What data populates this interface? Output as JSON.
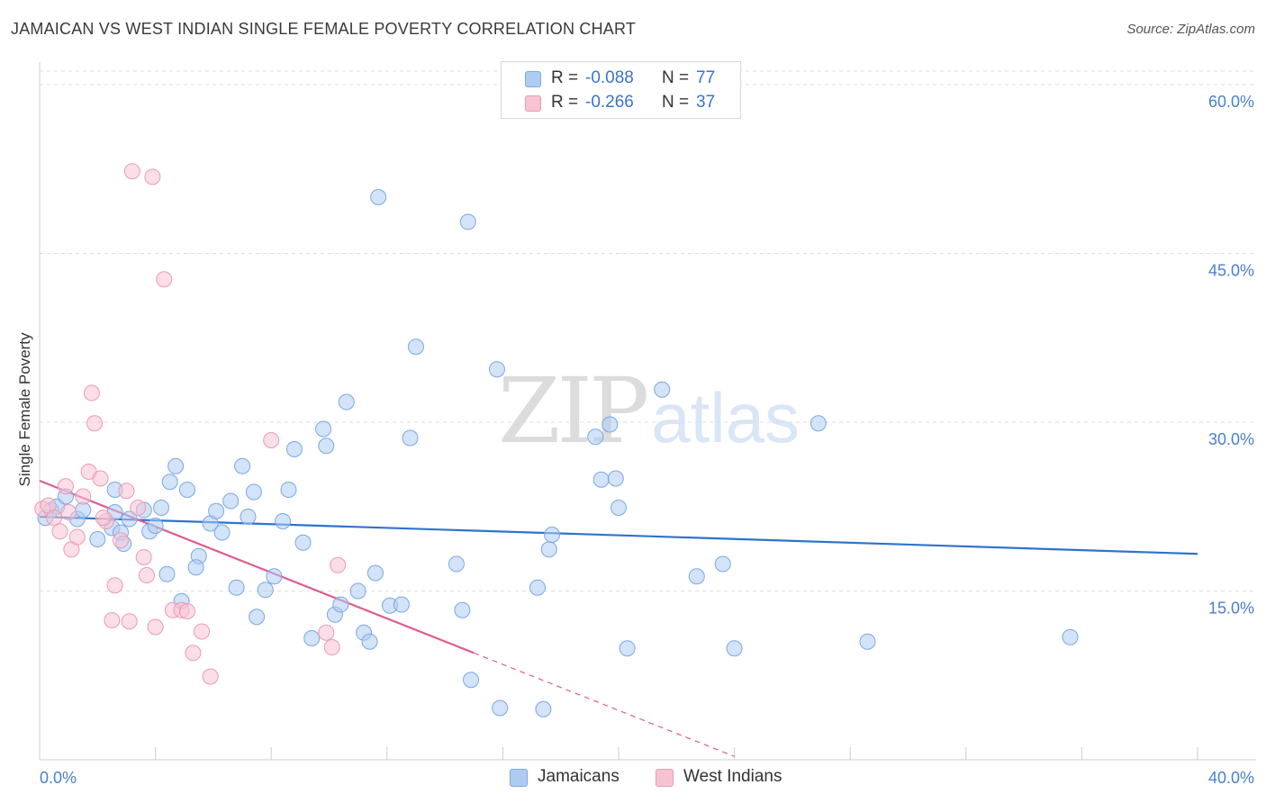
{
  "title": "JAMAICAN VS WEST INDIAN SINGLE FEMALE POVERTY CORRELATION CHART",
  "source": "Source: ZipAtlas.com",
  "watermark": {
    "zip": "ZIP",
    "atlas": "atlas"
  },
  "stats": [
    {
      "r_label": "R =",
      "r_value": "-0.088",
      "n_label": "N =",
      "n_value": "77",
      "color": "#aeccf2",
      "border": "#7aa8e6"
    },
    {
      "r_label": "R =",
      "r_value": "-0.266",
      "n_label": "N =",
      "n_value": "37",
      "color": "#f7c3d3",
      "border": "#ec9ab4"
    }
  ],
  "legend": [
    {
      "label": "Jamaicans",
      "color": "#aeccf2",
      "border": "#7aa8e6"
    },
    {
      "label": "West Indians",
      "color": "#f7c3d3",
      "border": "#ec9ab4"
    }
  ],
  "chart_data": {
    "type": "scatter",
    "title": "JAMAICAN VS WEST INDIAN SINGLE FEMALE POVERTY CORRELATION CHART",
    "xlabel": "",
    "ylabel": "Single Female Poverty",
    "xlim": [
      0,
      40
    ],
    "ylim": [
      0,
      62
    ],
    "x_tick_labels": [
      {
        "value": 0,
        "label": "0.0%"
      },
      {
        "value": 40,
        "label": "40.0%"
      }
    ],
    "y_tick_labels": [
      {
        "value": 15,
        "label": "15.0%"
      },
      {
        "value": 30,
        "label": "30.0%"
      },
      {
        "value": 45,
        "label": "45.0%"
      },
      {
        "value": 60,
        "label": "60.0%"
      }
    ],
    "x_minor_ticks": [
      4,
      8,
      12,
      16,
      20,
      24,
      28,
      32,
      36,
      40
    ],
    "grid": true,
    "series": [
      {
        "name": "Jamaicans",
        "color": "#aeccf2",
        "stroke": "#7aa8e6",
        "trend": {
          "x": [
            0,
            40
          ],
          "y": [
            21.6,
            18.3
          ],
          "color": "#2f73cc"
        },
        "points": [
          {
            "x": 0.2,
            "y": 21.5
          },
          {
            "x": 0.4,
            "y": 22.2
          },
          {
            "x": 0.6,
            "y": 22.5
          },
          {
            "x": 0.9,
            "y": 23.4
          },
          {
            "x": 1.3,
            "y": 21.4
          },
          {
            "x": 1.5,
            "y": 22.2
          },
          {
            "x": 2.0,
            "y": 19.6
          },
          {
            "x": 2.5,
            "y": 20.6
          },
          {
            "x": 2.6,
            "y": 24.0
          },
          {
            "x": 2.6,
            "y": 22.0
          },
          {
            "x": 2.8,
            "y": 20.2
          },
          {
            "x": 2.9,
            "y": 19.2
          },
          {
            "x": 3.1,
            "y": 21.4
          },
          {
            "x": 3.6,
            "y": 22.2
          },
          {
            "x": 3.8,
            "y": 20.3
          },
          {
            "x": 4.0,
            "y": 20.8
          },
          {
            "x": 4.2,
            "y": 22.4
          },
          {
            "x": 4.4,
            "y": 16.5
          },
          {
            "x": 4.5,
            "y": 24.7
          },
          {
            "x": 4.7,
            "y": 26.1
          },
          {
            "x": 4.9,
            "y": 14.1
          },
          {
            "x": 5.1,
            "y": 24.0
          },
          {
            "x": 5.5,
            "y": 18.1
          },
          {
            "x": 5.4,
            "y": 17.1
          },
          {
            "x": 5.9,
            "y": 21.0
          },
          {
            "x": 6.1,
            "y": 22.1
          },
          {
            "x": 6.3,
            "y": 20.2
          },
          {
            "x": 6.6,
            "y": 23.0
          },
          {
            "x": 6.8,
            "y": 15.3
          },
          {
            "x": 7.0,
            "y": 26.1
          },
          {
            "x": 7.2,
            "y": 21.6
          },
          {
            "x": 7.4,
            "y": 23.8
          },
          {
            "x": 7.5,
            "y": 12.7
          },
          {
            "x": 7.8,
            "y": 15.1
          },
          {
            "x": 8.1,
            "y": 16.3
          },
          {
            "x": 8.4,
            "y": 21.2
          },
          {
            "x": 8.6,
            "y": 24.0
          },
          {
            "x": 8.8,
            "y": 27.6
          },
          {
            "x": 9.1,
            "y": 19.3
          },
          {
            "x": 9.4,
            "y": 10.8
          },
          {
            "x": 9.8,
            "y": 29.4
          },
          {
            "x": 9.9,
            "y": 27.9
          },
          {
            "x": 10.2,
            "y": 12.9
          },
          {
            "x": 10.4,
            "y": 13.8
          },
          {
            "x": 10.6,
            "y": 31.8
          },
          {
            "x": 11.0,
            "y": 15.0
          },
          {
            "x": 11.2,
            "y": 11.3
          },
          {
            "x": 11.4,
            "y": 10.5
          },
          {
            "x": 11.6,
            "y": 16.6
          },
          {
            "x": 11.7,
            "y": 50.0
          },
          {
            "x": 12.1,
            "y": 13.7
          },
          {
            "x": 12.5,
            "y": 13.8
          },
          {
            "x": 12.8,
            "y": 28.6
          },
          {
            "x": 13.0,
            "y": 36.7
          },
          {
            "x": 14.4,
            "y": 17.4
          },
          {
            "x": 14.6,
            "y": 13.3
          },
          {
            "x": 14.8,
            "y": 47.8
          },
          {
            "x": 14.9,
            "y": 7.1
          },
          {
            "x": 15.8,
            "y": 34.7
          },
          {
            "x": 15.9,
            "y": 4.6
          },
          {
            "x": 17.2,
            "y": 15.3
          },
          {
            "x": 17.4,
            "y": 4.5
          },
          {
            "x": 17.6,
            "y": 18.7
          },
          {
            "x": 17.7,
            "y": 20.0
          },
          {
            "x": 19.2,
            "y": 28.7
          },
          {
            "x": 19.4,
            "y": 24.9
          },
          {
            "x": 19.7,
            "y": 29.8
          },
          {
            "x": 19.9,
            "y": 25.0
          },
          {
            "x": 20.0,
            "y": 22.4
          },
          {
            "x": 20.3,
            "y": 9.9
          },
          {
            "x": 21.5,
            "y": 32.9
          },
          {
            "x": 22.7,
            "y": 16.3
          },
          {
            "x": 23.6,
            "y": 17.4
          },
          {
            "x": 24.0,
            "y": 9.9
          },
          {
            "x": 26.9,
            "y": 29.9
          },
          {
            "x": 28.6,
            "y": 10.5
          },
          {
            "x": 35.6,
            "y": 10.9
          }
        ]
      },
      {
        "name": "West Indians",
        "color": "#f7c3d3",
        "stroke": "#ec9ab4",
        "trend": {
          "x": [
            0,
            15
          ],
          "y": [
            24.8,
            9.5
          ],
          "color": "#e05c8e",
          "dashed_extension": {
            "x": [
              15,
              24
            ],
            "y": [
              9.5,
              0.3
            ]
          }
        },
        "points": [
          {
            "x": 0.1,
            "y": 22.3
          },
          {
            "x": 0.3,
            "y": 22.6
          },
          {
            "x": 0.5,
            "y": 21.5
          },
          {
            "x": 0.7,
            "y": 20.3
          },
          {
            "x": 0.9,
            "y": 24.3
          },
          {
            "x": 1.1,
            "y": 18.7
          },
          {
            "x": 1.3,
            "y": 19.8
          },
          {
            "x": 1.5,
            "y": 23.4
          },
          {
            "x": 1.7,
            "y": 25.6
          },
          {
            "x": 1.8,
            "y": 32.6
          },
          {
            "x": 1.9,
            "y": 29.9
          },
          {
            "x": 2.1,
            "y": 25.0
          },
          {
            "x": 2.3,
            "y": 21.2
          },
          {
            "x": 2.5,
            "y": 12.4
          },
          {
            "x": 2.6,
            "y": 15.5
          },
          {
            "x": 2.8,
            "y": 19.5
          },
          {
            "x": 3.0,
            "y": 23.9
          },
          {
            "x": 3.1,
            "y": 12.3
          },
          {
            "x": 3.2,
            "y": 52.3
          },
          {
            "x": 3.4,
            "y": 22.4
          },
          {
            "x": 3.6,
            "y": 18.0
          },
          {
            "x": 3.7,
            "y": 16.4
          },
          {
            "x": 3.9,
            "y": 51.8
          },
          {
            "x": 4.0,
            "y": 11.8
          },
          {
            "x": 4.3,
            "y": 42.7
          },
          {
            "x": 4.6,
            "y": 13.3
          },
          {
            "x": 4.9,
            "y": 13.3
          },
          {
            "x": 5.1,
            "y": 13.2
          },
          {
            "x": 5.3,
            "y": 9.5
          },
          {
            "x": 5.6,
            "y": 11.4
          },
          {
            "x": 5.9,
            "y": 7.4
          },
          {
            "x": 8.0,
            "y": 28.4
          },
          {
            "x": 9.9,
            "y": 11.3
          },
          {
            "x": 10.1,
            "y": 10.0
          },
          {
            "x": 10.3,
            "y": 17.3
          },
          {
            "x": 1.0,
            "y": 22.0
          },
          {
            "x": 2.2,
            "y": 21.5
          }
        ]
      }
    ]
  }
}
